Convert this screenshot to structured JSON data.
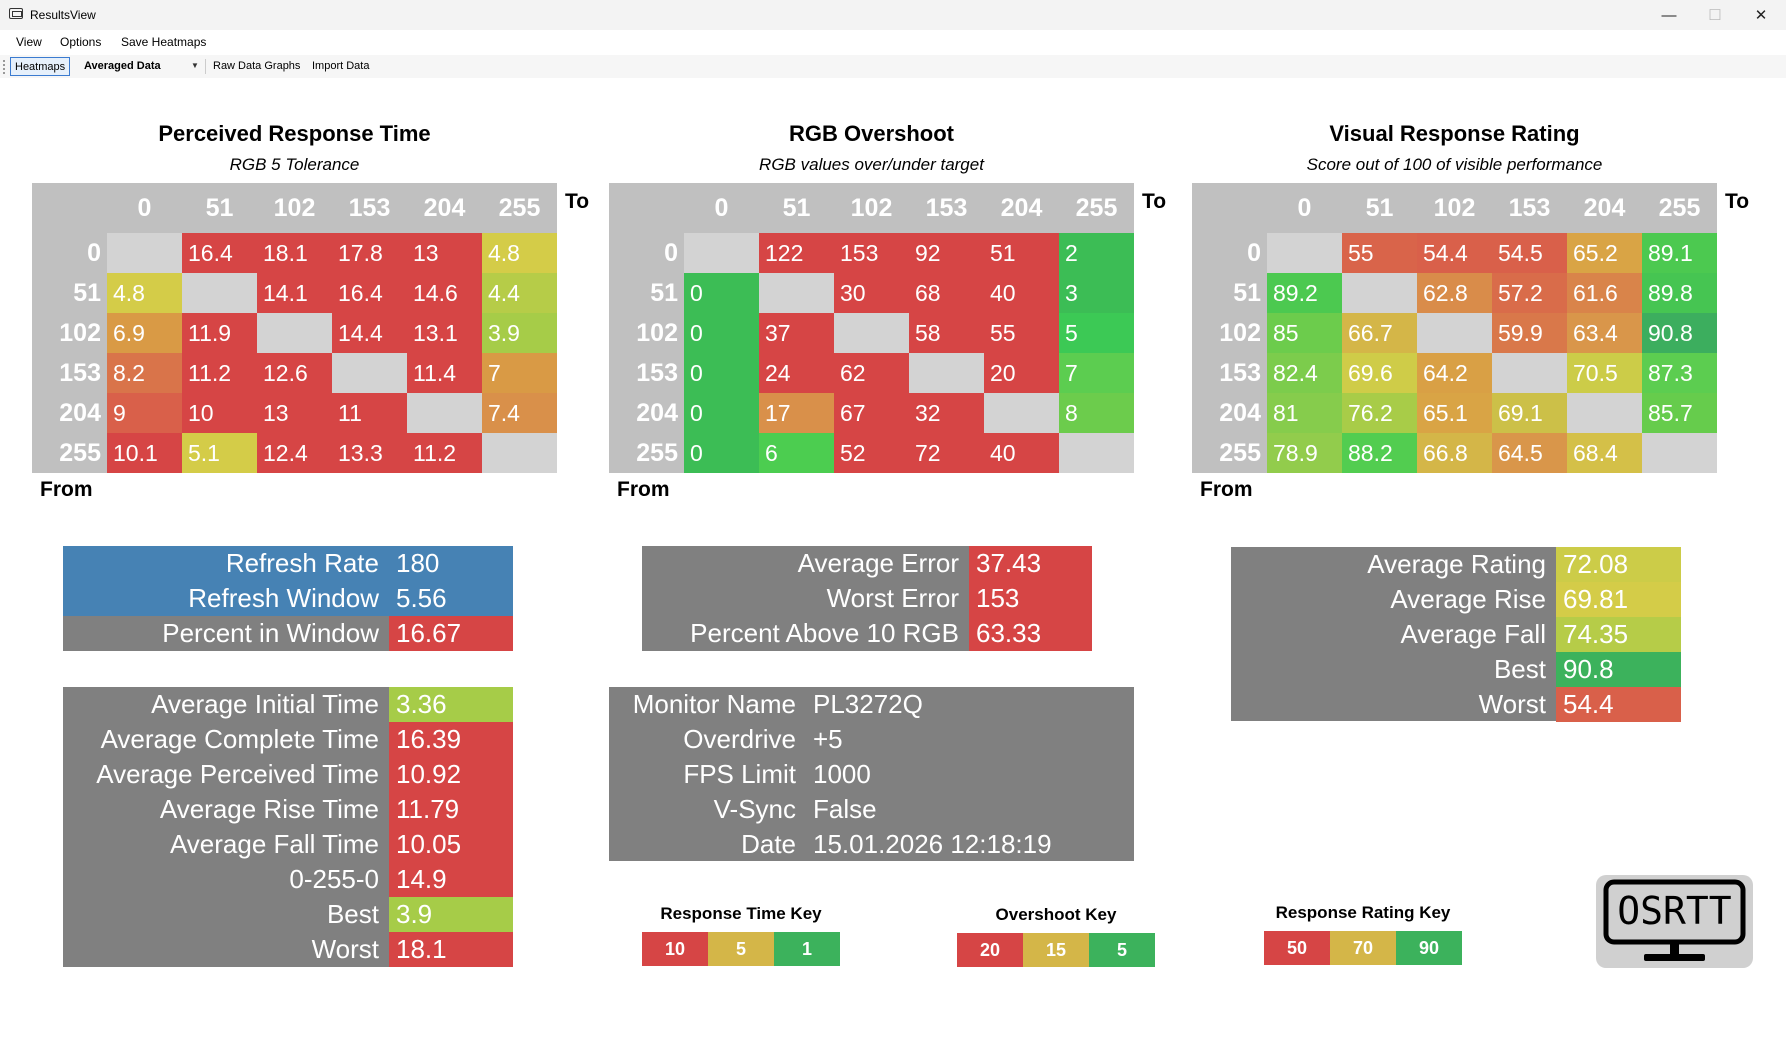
{
  "window": {
    "title": "ResultsView",
    "controls": [
      "—",
      "☐",
      "✕"
    ]
  },
  "menu": {
    "items": [
      "View",
      "Options",
      "Save Heatmaps"
    ]
  },
  "toolbar": {
    "heatmaps": "Heatmaps",
    "dropdown": "Averaged Data",
    "raw": "Raw Data Graphs",
    "import": "Import Data"
  },
  "axis": {
    "to": "To",
    "from": "From",
    "levels": [
      "0",
      "51",
      "102",
      "153",
      "204",
      "255"
    ]
  },
  "heatmaps": [
    {
      "title": "Perceived Response Time",
      "subtitle": "RGB 5 Tolerance",
      "rows": [
        [
          null,
          "16.4",
          "18.1",
          "17.8",
          "13",
          "4.8"
        ],
        [
          "4.8",
          null,
          "14.1",
          "16.4",
          "14.6",
          "4.4"
        ],
        [
          "6.9",
          "11.9",
          null,
          "14.4",
          "13.1",
          "3.9"
        ],
        [
          "8.2",
          "11.2",
          "12.6",
          null,
          "11.4",
          "7"
        ],
        [
          "9",
          "10",
          "13",
          "11",
          null,
          "7.4"
        ],
        [
          "10.1",
          "5.1",
          "12.4",
          "13.3",
          "11.2",
          null
        ]
      ],
      "colors": [
        [
          null,
          "#d64545",
          "#d64545",
          "#d64545",
          "#d64545",
          "#d4cc48"
        ],
        [
          "#d4cc48",
          null,
          "#d64545",
          "#d64545",
          "#d64545",
          "#b6cc48"
        ],
        [
          "#d99a45",
          "#d64545",
          null,
          "#d64545",
          "#d64545",
          "#a6cc48"
        ],
        [
          "#d9744a",
          "#d64545",
          "#d64545",
          null,
          "#d64545",
          "#d99a45"
        ],
        [
          "#d9604a",
          "#d64545",
          "#d64545",
          "#d64545",
          null,
          "#d9904a"
        ],
        [
          "#d64545",
          "#d4cc48",
          "#d64545",
          "#d64545",
          "#d64545",
          null
        ]
      ]
    },
    {
      "title": "RGB Overshoot",
      "subtitle": "RGB values over/under target",
      "rows": [
        [
          null,
          "122",
          "153",
          "92",
          "51",
          "2"
        ],
        [
          "0",
          null,
          "30",
          "68",
          "40",
          "3"
        ],
        [
          "0",
          "37",
          null,
          "58",
          "55",
          "5"
        ],
        [
          "0",
          "24",
          "62",
          null,
          "20",
          "7"
        ],
        [
          "0",
          "17",
          "67",
          "32",
          null,
          "8"
        ],
        [
          "0",
          "6",
          "52",
          "72",
          "40",
          null
        ]
      ],
      "colors": [
        [
          null,
          "#d64545",
          "#d64545",
          "#d64545",
          "#d64545",
          "#3cbd55"
        ],
        [
          "#3cbd55",
          null,
          "#d64545",
          "#d64545",
          "#d64545",
          "#3cbd55"
        ],
        [
          "#3cbd55",
          "#d64545",
          null,
          "#d64545",
          "#d64545",
          "#3cc955"
        ],
        [
          "#3cbd55",
          "#d64545",
          "#d64545",
          null,
          "#d64545",
          "#5ccd50"
        ],
        [
          "#3cbd55",
          "#d9904a",
          "#d64545",
          "#d64545",
          null,
          "#6ccc4c"
        ],
        [
          "#3cbd55",
          "#4ccd50",
          "#d64545",
          "#d64545",
          "#d64545",
          null
        ]
      ]
    },
    {
      "title": "Visual Response Rating",
      "subtitle": "Score out of 100 of visible performance",
      "rows": [
        [
          null,
          "55",
          "54.4",
          "54.5",
          "65.2",
          "89.1"
        ],
        [
          "89.2",
          null,
          "62.8",
          "57.2",
          "61.6",
          "89.8"
        ],
        [
          "85",
          "66.7",
          null,
          "59.9",
          "63.4",
          "90.8"
        ],
        [
          "82.4",
          "69.6",
          "64.2",
          null,
          "70.5",
          "87.3"
        ],
        [
          "81",
          "76.2",
          "65.1",
          "69.1",
          null,
          "85.7"
        ],
        [
          "78.9",
          "88.2",
          "66.8",
          "64.5",
          "68.4",
          null
        ]
      ],
      "colors": [
        [
          null,
          "#d9644a",
          "#d9604a",
          "#d9604a",
          "#d9a445",
          "#4cc950"
        ],
        [
          "#4cc950",
          null,
          "#d98c4a",
          "#d96c4a",
          "#d9844a",
          "#46c552"
        ],
        [
          "#6ccc4c",
          "#d4b648",
          null,
          "#d9784a",
          "#d9964a",
          "#3cae5e"
        ],
        [
          "#7ccc4c",
          "#cfcc48",
          "#d9a045",
          null,
          "#cccc48",
          "#5ccd50"
        ],
        [
          "#86cc4c",
          "#a8cc48",
          "#d9a445",
          "#ccc048",
          null,
          "#66cc4c"
        ],
        [
          "#92cc4c",
          "#52cd50",
          "#d4b648",
          "#d9964a",
          "#d4c048",
          null
        ]
      ]
    }
  ],
  "refresh_panel": {
    "rows": [
      {
        "label": "Refresh Rate",
        "value": "180",
        "label_color": "#4682b4",
        "value_color": "#4682b4"
      },
      {
        "label": "Refresh Window",
        "value": "5.56",
        "label_color": "#4682b4",
        "value_color": "#4682b4"
      },
      {
        "label": "Percent in Window",
        "value": "16.67",
        "label_color": "#808080",
        "value_color": "#d64545"
      }
    ]
  },
  "overshoot_panel": {
    "rows": [
      {
        "label": "Average Error",
        "value": "37.43",
        "value_color": "#d64545"
      },
      {
        "label": "Worst Error",
        "value": "153",
        "value_color": "#d64545"
      },
      {
        "label": "Percent Above 10 RGB",
        "value": "63.33",
        "value_color": "#d64545"
      }
    ]
  },
  "rating_panel": {
    "rows": [
      {
        "label": "Average Rating",
        "value": "72.08",
        "value_color": "#cccc48"
      },
      {
        "label": "Average Rise",
        "value": "69.81",
        "value_color": "#d4cc48"
      },
      {
        "label": "Average Fall",
        "value": "74.35",
        "value_color": "#b6cc48"
      },
      {
        "label": "Best",
        "value": "90.8",
        "value_color": "#3cb25c"
      },
      {
        "label": "Worst",
        "value": "54.4",
        "value_color": "#d9604a"
      }
    ]
  },
  "time_panel": {
    "rows": [
      {
        "label": "Average Initial Time",
        "value": "3.36",
        "value_color": "#a6cc48"
      },
      {
        "label": "Average Complete Time",
        "value": "16.39",
        "value_color": "#d64545"
      },
      {
        "label": "Average Perceived Time",
        "value": "10.92",
        "value_color": "#d64545"
      },
      {
        "label": "Average Rise Time",
        "value": "11.79",
        "value_color": "#d64545"
      },
      {
        "label": "Average Fall Time",
        "value": "10.05",
        "value_color": "#d64545"
      },
      {
        "label": "0-255-0",
        "value": "14.9",
        "value_color": "#d64545"
      },
      {
        "label": "Best",
        "value": "3.9",
        "value_color": "#a6cc48"
      },
      {
        "label": "Worst",
        "value": "18.1",
        "value_color": "#d64545"
      }
    ]
  },
  "monitor_panel": {
    "rows": [
      {
        "label": "Monitor Name",
        "value": "PL3272Q"
      },
      {
        "label": "Overdrive",
        "value": "+5"
      },
      {
        "label": "FPS Limit",
        "value": "1000"
      },
      {
        "label": "V-Sync",
        "value": "False"
      },
      {
        "label": "Date",
        "value": "15.01.2026 12:18:19"
      }
    ]
  },
  "keys": [
    {
      "title": "Response Time Key",
      "cells": [
        {
          "v": "10",
          "c": "#d64545"
        },
        {
          "v": "5",
          "c": "#d4b648"
        },
        {
          "v": "1",
          "c": "#3cb25c"
        }
      ]
    },
    {
      "title": "Overshoot Key",
      "cells": [
        {
          "v": "20",
          "c": "#d64545"
        },
        {
          "v": "15",
          "c": "#d4b648"
        },
        {
          "v": "5",
          "c": "#3cb25c"
        }
      ]
    },
    {
      "title": "Response Rating Key",
      "cells": [
        {
          "v": "50",
          "c": "#d64545"
        },
        {
          "v": "70",
          "c": "#d4b648"
        },
        {
          "v": "90",
          "c": "#3cb25c"
        }
      ]
    }
  ],
  "logo": {
    "text": "OSRTT"
  },
  "colors": {
    "empty_cell": "#d3d3d3",
    "grid_bg": "#c0c0c0",
    "panel_bg": "#808080"
  }
}
